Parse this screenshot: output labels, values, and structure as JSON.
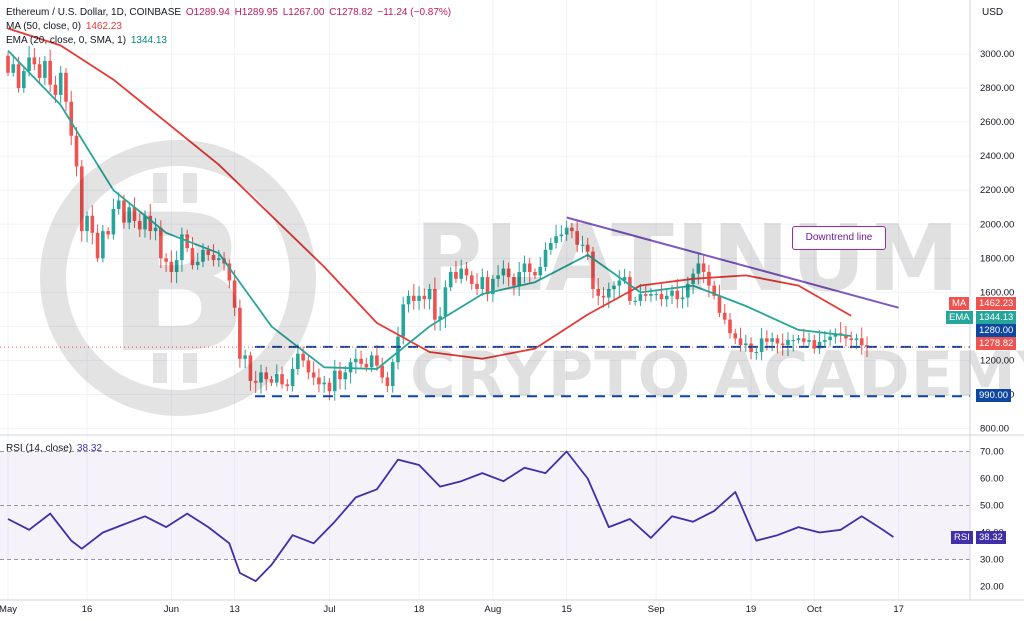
{
  "header": {
    "symbol": "Ethereum / U.S. Dollar, 1D, COINBASE",
    "open": "O1289.94",
    "high": "H1289.95",
    "low": "L1267.00",
    "close": "C1278.82",
    "change": "−11.24 (−0.87%)",
    "ma_label": "MA (50, close, 0)",
    "ma_value": "1462.23",
    "ema_label": "EMA (20, close, 0, SMA, 1)",
    "ema_value": "1344.13",
    "rsi_label": "RSI (14, close)",
    "rsi_value": "38.32",
    "currency": "USD"
  },
  "watermark": {
    "line1": "PLATINUM",
    "line2": "CRYPTO ACADEMY"
  },
  "annotation": {
    "label": "Downtrend line"
  },
  "colors": {
    "up": "#26a69a",
    "down": "#ef5350",
    "ma": "#e53935",
    "ema": "#26a69a",
    "rsi": "#3f2fa8",
    "trend": "#7e57c2",
    "level": "#0d47a1"
  },
  "chart_data": [
    {
      "type": "candlestick",
      "title": "Ethereum / U.S. Dollar, 1D, COINBASE",
      "ylim": [
        780,
        3200
      ],
      "y_ticks": [
        800,
        1000,
        1200,
        1400,
        1600,
        1800,
        2000,
        2200,
        2400,
        2600,
        2800,
        3000
      ],
      "y_tick_labels": [
        "800.00",
        "1000.00",
        "1200.00",
        "1400.00",
        "1600.00",
        "1800.00",
        "2000.00",
        "2200.00",
        "2400.00",
        "2600.00",
        "2800.00",
        "3000.00"
      ],
      "x_ticks": [
        {
          "label": "May",
          "day": 0
        },
        {
          "label": "16",
          "day": 15
        },
        {
          "label": "Jun",
          "day": 31
        },
        {
          "label": "13",
          "day": 43
        },
        {
          "label": "Jul",
          "day": 61
        },
        {
          "label": "18",
          "day": 78
        },
        {
          "label": "Aug",
          "day": 92
        },
        {
          "label": "15",
          "day": 106
        },
        {
          "label": "Sep",
          "day": 123
        },
        {
          "label": "19",
          "day": 141
        },
        {
          "label": "Oct",
          "day": 153
        },
        {
          "label": "17",
          "day": 169
        }
      ],
      "date_range": [
        "2022-04-27",
        "2022-10-11"
      ],
      "closes": [
        2890,
        2940,
        2800,
        2900,
        2980,
        2940,
        2860,
        2960,
        2820,
        2760,
        2890,
        2720,
        2520,
        2340,
        1960,
        2050,
        1950,
        1800,
        1960,
        1940,
        2090,
        2140,
        2010,
        2100,
        2020,
        1970,
        2050,
        1960,
        1980,
        1800,
        1780,
        1720,
        1790,
        1940,
        1860,
        1760,
        1780,
        1850,
        1820,
        1790,
        1800,
        1770,
        1670,
        1510,
        1210,
        1230,
        1080,
        1070,
        1130,
        1090,
        1070,
        1120,
        1060,
        1050,
        1150,
        1240,
        1200,
        1130,
        1100,
        1060,
        1070,
        1020,
        1140,
        1090,
        1130,
        1190,
        1210,
        1180,
        1160,
        1230,
        1170,
        1100,
        1050,
        1190,
        1340,
        1530,
        1580,
        1550,
        1580,
        1560,
        1620,
        1440,
        1460,
        1630,
        1720,
        1680,
        1740,
        1700,
        1650,
        1620,
        1690,
        1590,
        1680,
        1700,
        1740,
        1690,
        1640,
        1720,
        1770,
        1720,
        1700,
        1750,
        1850,
        1890,
        1930,
        1940,
        1980,
        1960,
        1880,
        1880,
        1840,
        1620,
        1580,
        1570,
        1620,
        1640,
        1670,
        1690,
        1550,
        1550,
        1590,
        1580,
        1590,
        1590,
        1560,
        1580,
        1610,
        1560,
        1570,
        1650,
        1710,
        1770,
        1720,
        1640,
        1580,
        1480,
        1440,
        1360,
        1330,
        1290,
        1300,
        1250,
        1250,
        1330,
        1310,
        1330,
        1300,
        1290,
        1320,
        1320,
        1330,
        1310,
        1320,
        1270,
        1310,
        1320,
        1340,
        1360,
        1350,
        1330,
        1320,
        1330,
        1290,
        1279
      ],
      "current_price": 1278.82,
      "levels": [
        {
          "label": "1280.00",
          "value": 1280
        },
        {
          "label": "990.00",
          "value": 990
        }
      ],
      "trend_line": {
        "label": "Downtrend line",
        "from": {
          "day": 106,
          "value": 2040
        },
        "to": {
          "day": 169,
          "value": 1510
        }
      },
      "series": [
        {
          "name": "MA",
          "value_label": "1462.23",
          "anchor_days": [
            0,
            10,
            20,
            30,
            40,
            50,
            60,
            70,
            80,
            90,
            100,
            110,
            120,
            130,
            140,
            150,
            160
          ],
          "values": [
            3150,
            3050,
            2850,
            2600,
            2350,
            2050,
            1750,
            1420,
            1250,
            1210,
            1270,
            1470,
            1640,
            1680,
            1700,
            1640,
            1462
          ]
        },
        {
          "name": "EMA",
          "value_label": "1344.13",
          "anchor_days": [
            0,
            10,
            20,
            30,
            40,
            50,
            60,
            70,
            80,
            90,
            100,
            110,
            120,
            130,
            140,
            150,
            160
          ],
          "values": [
            3020,
            2700,
            2200,
            1950,
            1830,
            1400,
            1160,
            1150,
            1400,
            1590,
            1660,
            1820,
            1600,
            1640,
            1520,
            1380,
            1344
          ]
        }
      ]
    },
    {
      "type": "line",
      "title": "RSI (14, close)",
      "ylim": [
        15,
        75
      ],
      "y_ticks": [
        20,
        30,
        40,
        50,
        60,
        70
      ],
      "y_tick_labels": [
        "20.00",
        "30.00",
        "40.00",
        "50.00",
        "60.00",
        "70.00"
      ],
      "band": [
        30,
        70
      ],
      "series": [
        {
          "name": "RSI",
          "value_label": "38.32",
          "anchor_days": [
            0,
            4,
            8,
            12,
            14,
            18,
            22,
            26,
            30,
            34,
            38,
            42,
            44,
            47,
            50,
            54,
            58,
            62,
            66,
            70,
            74,
            78,
            82,
            86,
            90,
            94,
            98,
            102,
            106,
            110,
            114,
            118,
            122,
            126,
            130,
            134,
            138,
            142,
            146,
            150,
            154,
            158,
            162,
            166,
            168
          ],
          "values": [
            45,
            41,
            47,
            37,
            34,
            40,
            43,
            46,
            42,
            47,
            42,
            36,
            25,
            22,
            28,
            39,
            36,
            44,
            53,
            56,
            67,
            65,
            57,
            59,
            62,
            59,
            64,
            62,
            70,
            60,
            42,
            45,
            38,
            46,
            44,
            48,
            55,
            37,
            39,
            42,
            40,
            41,
            46,
            41,
            38.32
          ]
        }
      ]
    }
  ]
}
